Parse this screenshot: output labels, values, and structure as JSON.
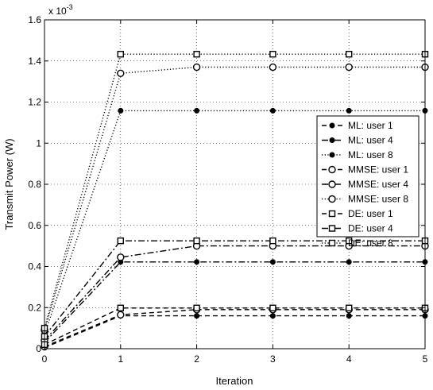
{
  "chart_data": {
    "type": "line",
    "title": "",
    "xlabel": "Iteration",
    "ylabel": "Transmit Power (W)",
    "y_scale_label": "x 10",
    "y_scale_exponent": "-3",
    "x": [
      0,
      1,
      2,
      3,
      4,
      5
    ],
    "xlim": [
      0,
      5
    ],
    "ylim": [
      0,
      1.6
    ],
    "x_ticks": [
      "0",
      "1",
      "2",
      "3",
      "4",
      "5"
    ],
    "y_ticks": [
      "0",
      "0.2",
      "0.4",
      "0.6",
      "0.8",
      "1",
      "1.2",
      "1.4",
      "1.6"
    ],
    "grid": true,
    "legend_position": "right",
    "series": [
      {
        "name": "ML: user 1",
        "line": "dashed",
        "marker": "filled-circle",
        "values": [
          0.005,
          0.16,
          0.16,
          0.16,
          0.16,
          0.16
        ]
      },
      {
        "name": "ML: user 4",
        "line": "dashdot",
        "marker": "filled-circle",
        "values": [
          0.03,
          0.422,
          0.422,
          0.422,
          0.422,
          0.422
        ]
      },
      {
        "name": "ML: user 8",
        "line": "dotted",
        "marker": "filled-circle",
        "values": [
          0.07,
          1.158,
          1.158,
          1.158,
          1.158,
          1.158
        ]
      },
      {
        "name": "MMSE: user 1",
        "line": "dashed",
        "marker": "open-circle",
        "values": [
          0.01,
          0.165,
          0.19,
          0.19,
          0.19,
          0.19
        ]
      },
      {
        "name": "MMSE: user 4",
        "line": "dashdot",
        "marker": "open-circle",
        "values": [
          0.04,
          0.445,
          0.5,
          0.5,
          0.5,
          0.5
        ]
      },
      {
        "name": "MMSE: user 8",
        "line": "dotted",
        "marker": "open-circle",
        "values": [
          0.09,
          1.34,
          1.37,
          1.37,
          1.37,
          1.37
        ]
      },
      {
        "name": "DE: user 1",
        "line": "dashed",
        "marker": "open-square",
        "values": [
          0.02,
          0.198,
          0.198,
          0.198,
          0.198,
          0.198
        ]
      },
      {
        "name": "DE: user 4",
        "line": "dashdot",
        "marker": "open-square",
        "values": [
          0.06,
          0.525,
          0.525,
          0.525,
          0.525,
          0.525
        ]
      },
      {
        "name": "DE: user 8",
        "line": "dotted",
        "marker": "open-square",
        "values": [
          0.1,
          1.433,
          1.433,
          1.433,
          1.433,
          1.433
        ]
      }
    ]
  }
}
